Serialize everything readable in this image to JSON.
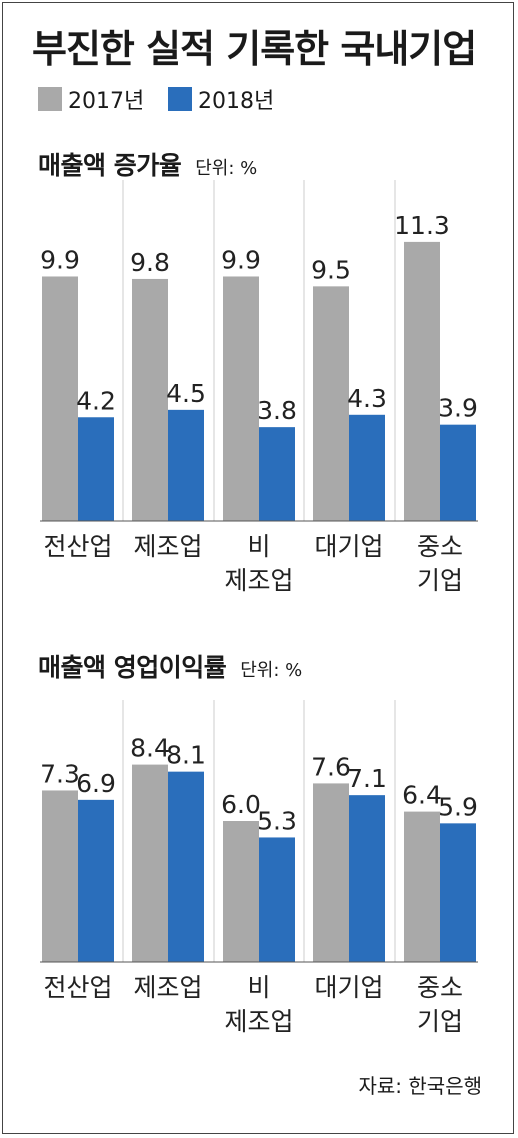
{
  "title": "부진한 실적 기록한 국내기업",
  "legend": [
    {
      "label": "2017년",
      "color": "#a9a9a9"
    },
    {
      "label": "2018년",
      "color": "#2a6ebb"
    }
  ],
  "source": "자료: 한국은행",
  "chart_data": [
    {
      "type": "bar",
      "title": "매출액 증가율",
      "unit": "단위: %",
      "categories": [
        [
          "전산업"
        ],
        [
          "제조업"
        ],
        [
          "비",
          "제조업"
        ],
        [
          "대기업"
        ],
        [
          "중소",
          "기업"
        ]
      ],
      "series": [
        {
          "name": "2017년",
          "color": "#a9a9a9",
          "values": [
            9.9,
            9.8,
            9.9,
            9.5,
            11.3
          ]
        },
        {
          "name": "2018년",
          "color": "#2a6ebb",
          "values": [
            4.2,
            4.5,
            3.8,
            4.3,
            3.9
          ]
        }
      ]
    },
    {
      "type": "bar",
      "title": "매출액 영업이익률",
      "unit": "단위: %",
      "categories": [
        [
          "전산업"
        ],
        [
          "제조업"
        ],
        [
          "비",
          "제조업"
        ],
        [
          "대기업"
        ],
        [
          "중소",
          "기업"
        ]
      ],
      "series": [
        {
          "name": "2017년",
          "color": "#a9a9a9",
          "values": [
            7.3,
            8.4,
            6.0,
            7.6,
            6.4
          ]
        },
        {
          "name": "2018년",
          "color": "#2a6ebb",
          "values": [
            6.9,
            8.1,
            5.3,
            7.1,
            5.9
          ]
        }
      ]
    }
  ]
}
